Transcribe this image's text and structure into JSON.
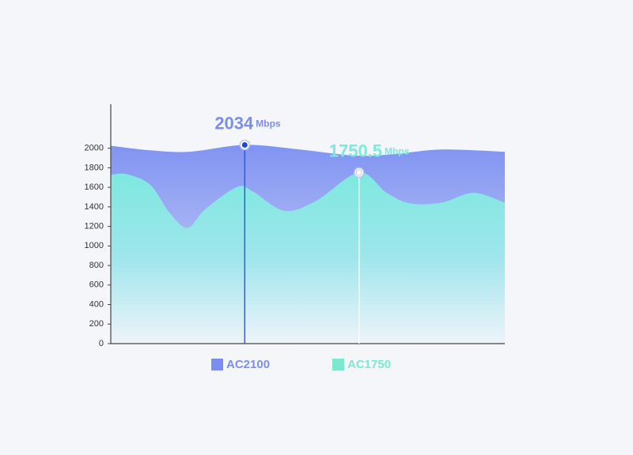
{
  "chart_data": {
    "type": "area",
    "series": [
      {
        "name": "AC2100",
        "color": "#7b8ef0",
        "x": [
          0,
          10,
          20,
          34,
          48,
          62,
          72,
          84,
          100
        ],
        "values": [
          2026,
          1979,
          1964,
          2034,
          1987,
          1925,
          1940,
          1987,
          1964
        ]
      },
      {
        "name": "AC1750",
        "color": "#7de8d0",
        "x": [
          0,
          4,
          10,
          15,
          19.5,
          24,
          32,
          36,
          44,
          52,
          63,
          70,
          76,
          84,
          92,
          100
        ],
        "values": [
          1726,
          1734,
          1626,
          1335,
          1185,
          1376,
          1602,
          1559,
          1360,
          1459,
          1750.5,
          1543,
          1435,
          1443,
          1543,
          1443
        ]
      }
    ],
    "annotations": [
      {
        "value": 2034,
        "unit": "Mbps"
      },
      {
        "value": 1750.5,
        "unit": "Mbps"
      }
    ],
    "xlim": [
      0,
      100
    ],
    "ylim": [
      0,
      2450
    ],
    "yticks": [
      0,
      200,
      400,
      600,
      800,
      1000,
      1200,
      1400,
      1600,
      1800,
      2000
    ]
  }
}
